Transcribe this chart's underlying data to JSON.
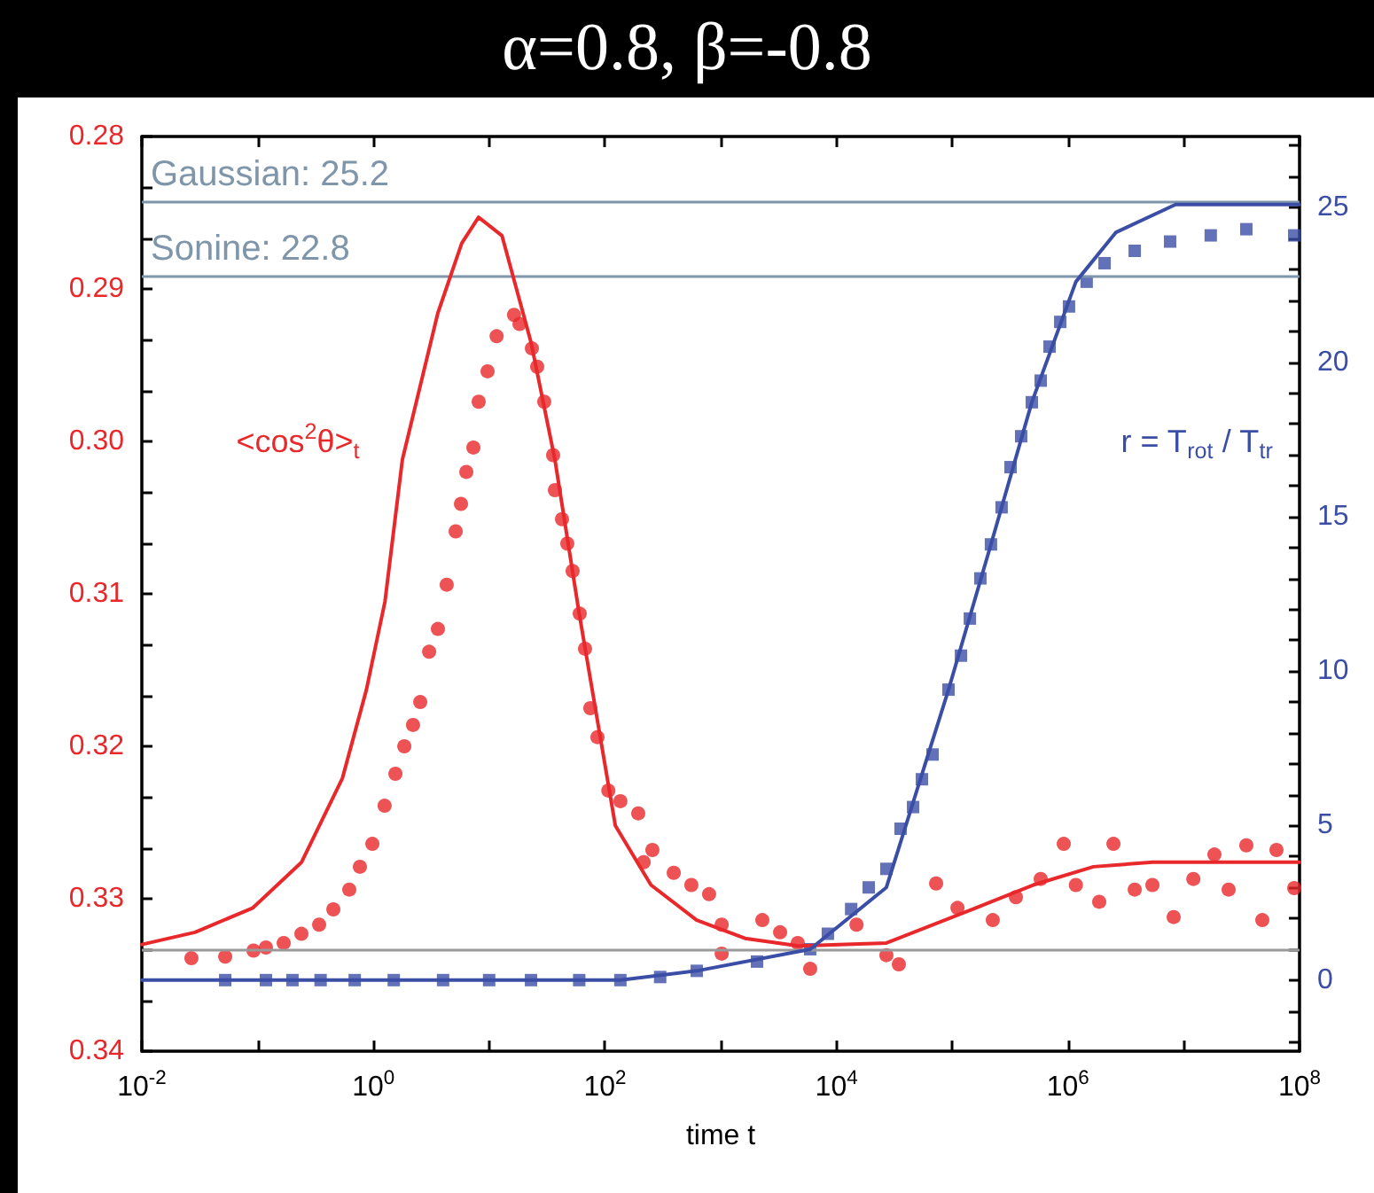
{
  "chart_data": {
    "type": "scatter",
    "title": "α=0.8, β=-0.8",
    "xlabel": "time t",
    "log": "x",
    "grid": false,
    "xlim": [
      0.01,
      100000000
    ],
    "xticks": [
      {
        "value": 0.01,
        "label": "10$^{-2}$"
      },
      {
        "value": 0.1,
        "label": null
      },
      {
        "value": 1,
        "label": "10$^{0}$"
      },
      {
        "value": 10,
        "label": null
      },
      {
        "value": 100,
        "label": "10$^{2}$"
      },
      {
        "value": 1000,
        "label": null
      },
      {
        "value": 10000,
        "label": "10$^{4}$"
      },
      {
        "value": 100000,
        "label": null
      },
      {
        "value": 1000000,
        "label": "10$^{6}$"
      },
      {
        "value": 10000000,
        "label": null
      },
      {
        "value": 100000000,
        "label": "10$^{8}$"
      }
    ],
    "ylim": [
      0.34,
      0.28
    ],
    "yticks": [
      {
        "value": 0.28,
        "label": "0.28"
      },
      {
        "value": 0.2833,
        "label": null
      },
      {
        "value": 0.2867,
        "label": null
      },
      {
        "value": 0.29,
        "label": "0.29"
      },
      {
        "value": 0.2933,
        "label": null
      },
      {
        "value": 0.2967,
        "label": null
      },
      {
        "value": 0.3,
        "label": "0.30"
      },
      {
        "value": 0.3033,
        "label": null
      },
      {
        "value": 0.3067,
        "label": null
      },
      {
        "value": 0.31,
        "label": "0.31"
      },
      {
        "value": 0.3133,
        "label": null
      },
      {
        "value": 0.3167,
        "label": null
      },
      {
        "value": 0.32,
        "label": "0.32"
      },
      {
        "value": 0.3233,
        "label": null
      },
      {
        "value": 0.3267,
        "label": null
      },
      {
        "value": 0.33,
        "label": "0.33"
      },
      {
        "value": 0.3333,
        "label": null
      },
      {
        "value": 0.3367,
        "label": null
      },
      {
        "value": 0.34,
        "label": "0.34"
      }
    ],
    "y2lim": [
      -2.3,
      27.3
    ],
    "y2ticks": [
      {
        "value": -2,
        "label": null
      },
      {
        "value": -1,
        "label": null
      },
      0,
      {
        "value": 1,
        "label": null
      },
      {
        "value": 2,
        "label": null
      },
      {
        "value": 3,
        "label": null
      },
      {
        "value": 4,
        "label": null
      },
      5,
      {
        "value": 6,
        "label": null
      },
      {
        "value": 7,
        "label": null
      },
      {
        "value": 8,
        "label": null
      },
      {
        "value": 9,
        "label": null
      },
      10,
      {
        "value": 11,
        "label": null
      },
      {
        "value": 12,
        "label": null
      },
      {
        "value": 13,
        "label": null
      },
      {
        "value": 14,
        "label": null
      },
      15,
      {
        "value": 16,
        "label": null
      },
      {
        "value": 17,
        "label": null
      },
      {
        "value": 18,
        "label": null
      },
      {
        "value": 19,
        "label": null
      },
      20,
      {
        "value": 21,
        "label": null
      },
      {
        "value": 22,
        "label": null
      },
      {
        "value": 23,
        "label": null
      },
      {
        "value": 24,
        "label": null
      },
      25,
      {
        "value": 26,
        "label": null
      },
      {
        "value": 27,
        "label": null
      }
    ],
    "series": [
      {
        "marker": "circle",
        "color": "#e8282b",
        "x": [
          0.0268,
          0.0525,
          0.0922,
          0.118,
          0.168,
          0.239,
          0.34,
          0.451,
          0.619,
          0.765,
          0.98,
          1.25,
          1.55,
          1.85,
          2.2,
          2.54,
          3.03,
          3.61,
          4.3,
          5.14,
          5.71,
          6.35,
          7.31,
          8.12,
          9.69,
          11.6,
          16.4,
          18.3,
          23.4,
          26,
          29.9,
          35.7,
          37,
          42.6,
          47.3,
          52.6,
          60.6,
          67.3,
          74.8,
          86.2,
          107,
          136,
          194,
          216,
          257,
          393,
          558,
          794,
          1020,
          1020,
          2290,
          3260,
          4630,
          5930,
          14900,
          27000,
          34600,
          72600,
          111000,
          224000,
          355000,
          581000,
          919000,
          1170000,
          1860000,
          2470000,
          3770000,
          5360000,
          8180000,
          12100000,
          18400000,
          24400000,
          34700000,
          47700000,
          63200000,
          90000000
        ],
        "values": [
          0.3339,
          0.3338,
          0.3334,
          0.3332,
          0.3329,
          0.3323,
          0.3317,
          0.3307,
          0.3294,
          0.3279,
          0.3264,
          0.3239,
          0.3218,
          0.32,
          0.3186,
          0.3171,
          0.3138,
          0.3123,
          0.3094,
          0.3059,
          0.3041,
          0.302,
          0.3004,
          0.2974,
          0.2954,
          0.2931,
          0.2917,
          0.2923,
          0.2939,
          0.2951,
          0.2974,
          0.3009,
          0.3032,
          0.3051,
          0.3067,
          0.3085,
          0.3113,
          0.3136,
          0.3175,
          0.3194,
          0.3229,
          0.3236,
          0.3244,
          0.3276,
          0.3268,
          0.3283,
          0.3291,
          0.3297,
          0.3317,
          0.3336,
          0.3314,
          0.3322,
          0.3329,
          0.3346,
          0.3317,
          0.3337,
          0.3343,
          0.329,
          0.3306,
          0.3314,
          0.3299,
          0.3287,
          0.3264,
          0.3291,
          0.3302,
          0.3264,
          0.3294,
          0.3291,
          0.3312,
          0.3287,
          0.3271,
          0.3294,
          0.3265,
          0.3314,
          0.3268,
          0.3293
        ]
      },
      {
        "type": "line",
        "marker": "none",
        "line_style": "solid",
        "color": "#e8282b",
        "x": [
          0.01,
          0.0288,
          0.091,
          0.24,
          0.54,
          0.87,
          1.26,
          1.78,
          3.6,
          5.8,
          8.1,
          12.9,
          23,
          37,
          60,
          123,
          250,
          620,
          1620,
          4700,
          27000,
          160000,
          500000,
          1660000,
          5400000,
          100000000
        ],
        "values": [
          0.333,
          0.3322,
          0.3306,
          0.3276,
          0.3221,
          0.3163,
          0.3105,
          0.3012,
          0.2916,
          0.287,
          0.2853,
          0.2865,
          0.2935,
          0.3012,
          0.3113,
          0.3252,
          0.3291,
          0.3314,
          0.3326,
          0.3331,
          0.3329,
          0.3306,
          0.3291,
          0.3279,
          0.3276,
          0.3276
        ]
      },
      {
        "marker": "square",
        "axis": "y2",
        "color": "#3b4ea6",
        "x": [
          0.0525,
          0.118,
          0.2,
          0.35,
          0.69,
          1.5,
          4,
          10,
          23,
          60,
          136,
          300,
          621,
          2060,
          5930,
          8430,
          13400,
          19000,
          27000,
          35800,
          45900,
          54700,
          67600,
          92900,
          119000,
          142000,
          175000,
          216000,
          267000,
          319000,
          394000,
          487000,
          581000,
          693000,
          857000,
          1020000,
          1450000,
          2070000,
          3770000,
          7620000,
          17100000,
          34700000,
          90000000
        ],
        "values": [
          0,
          0,
          0,
          0,
          0,
          0,
          0,
          0,
          0,
          0,
          0,
          0.1,
          0.3,
          0.6,
          1.0,
          1.5,
          2.3,
          3.0,
          3.6,
          4.9,
          5.6,
          6.5,
          7.3,
          9.4,
          10.5,
          11.7,
          13.0,
          14.1,
          15.3,
          16.6,
          17.6,
          18.7,
          19.4,
          20.5,
          21.3,
          21.8,
          22.6,
          23.2,
          23.6,
          23.9,
          24.1,
          24.3,
          24.1
        ]
      },
      {
        "type": "line",
        "marker": "none",
        "line_style": "solid",
        "axis": "y2",
        "color": "#3b4ea6",
        "x": [
          0.01,
          1,
          136,
          621,
          5930,
          27000,
          92900,
          216000,
          487000,
          1170000,
          2600000,
          8500000,
          100000000
        ],
        "values": [
          0,
          0,
          0,
          0.3,
          1.0,
          3.0,
          9.4,
          14.1,
          18.7,
          22.6,
          24.2,
          25.1,
          25.1
        ]
      }
    ],
    "ref_lines": [
      {
        "axis": "y",
        "value": 0.3333,
        "color": "#999999"
      },
      {
        "axis": "y2",
        "value": 25.2,
        "label": "Gaussian: 25.2",
        "color": "#7f96aa"
      },
      {
        "axis": "y2",
        "value": 22.8,
        "label": "Sonine: 22.8",
        "color": "#7f96aa"
      }
    ],
    "annotations": [
      "<cos$^{2}$θ>$_{t}$",
      "r = T$_{rot}$ / T$_{tr}$"
    ]
  }
}
